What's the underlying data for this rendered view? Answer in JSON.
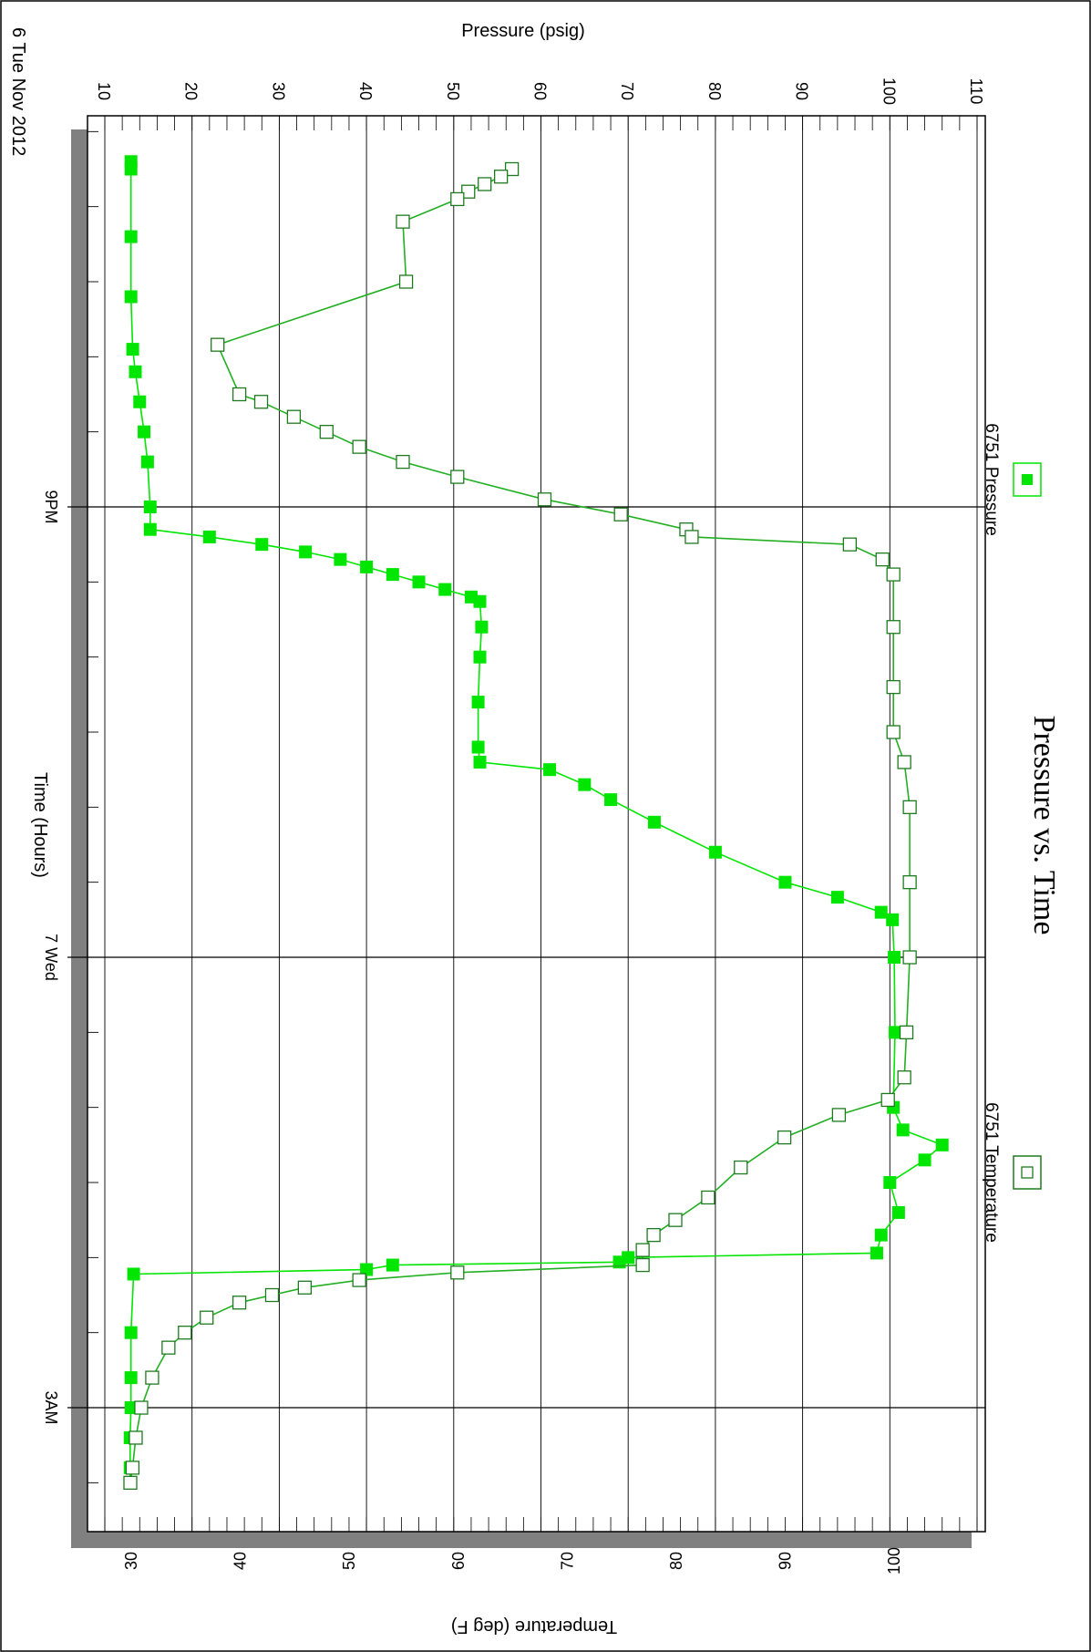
{
  "chart_data": {
    "type": "line",
    "title": "Pressure vs. Time",
    "date_label": "6 Tue Nov 2012",
    "x_axis": {
      "label": "Time (Hours)",
      "major_ticks": [
        {
          "hour": 21,
          "label": "9PM"
        },
        {
          "hour": 24,
          "label": "7 Wed"
        },
        {
          "hour": 27,
          "label": "3AM"
        }
      ],
      "range_hours": [
        18.3,
        27.75
      ]
    },
    "y_axis_pressure": {
      "label": "Pressure (psig)",
      "ticks": [
        "10",
        "20",
        "30",
        "40",
        "50",
        "60",
        "70",
        "80",
        "90",
        "100",
        "110"
      ],
      "range": [
        10,
        110
      ]
    },
    "y_axis_temperature": {
      "label": "Temperature (deg F)",
      "ticks": [
        "30",
        "40",
        "50",
        "60",
        "70",
        "80",
        "90",
        "100"
      ],
      "range": [
        30,
        100
      ]
    },
    "legend": {
      "placement": "top",
      "entries": [
        "6751 Pressure",
        "6751 Temperature"
      ]
    },
    "colors": {
      "series": "#00e600",
      "series_dark": "#1e7a1e",
      "frame_shadow": "#808080"
    },
    "series": [
      {
        "name": "6751 Pressure",
        "marker": "filled-square",
        "points": [
          [
            18.7,
            13.0
          ],
          [
            18.75,
            13.0
          ],
          [
            19.2,
            13.0
          ],
          [
            19.6,
            13.0
          ],
          [
            19.95,
            13.2
          ],
          [
            20.1,
            13.5
          ],
          [
            20.3,
            14.0
          ],
          [
            20.5,
            14.5
          ],
          [
            20.7,
            14.9
          ],
          [
            21.0,
            15.2
          ],
          [
            21.15,
            15.2
          ],
          [
            21.2,
            22.0
          ],
          [
            21.25,
            28.0
          ],
          [
            21.3,
            33.0
          ],
          [
            21.35,
            37.0
          ],
          [
            21.4,
            40.0
          ],
          [
            21.45,
            43.0
          ],
          [
            21.5,
            46.0
          ],
          [
            21.55,
            49.0
          ],
          [
            21.6,
            52.0
          ],
          [
            21.63,
            53.0
          ],
          [
            21.8,
            53.2
          ],
          [
            22.0,
            53.0
          ],
          [
            22.3,
            52.8
          ],
          [
            22.6,
            52.8
          ],
          [
            22.7,
            53.0
          ],
          [
            22.75,
            61.0
          ],
          [
            22.85,
            65.0
          ],
          [
            22.95,
            68.0
          ],
          [
            23.1,
            73.0
          ],
          [
            23.3,
            80.0
          ],
          [
            23.5,
            88.0
          ],
          [
            23.6,
            94.0
          ],
          [
            23.7,
            99.0
          ],
          [
            23.75,
            100.3
          ],
          [
            24.0,
            100.5
          ],
          [
            24.5,
            100.6
          ],
          [
            25.0,
            100.4
          ],
          [
            25.15,
            101.5
          ],
          [
            25.25,
            106.0
          ],
          [
            25.35,
            104.0
          ],
          [
            25.5,
            100.0
          ],
          [
            25.7,
            101.0
          ],
          [
            25.85,
            99.0
          ],
          [
            25.97,
            98.5
          ],
          [
            26.0,
            70.0
          ],
          [
            26.03,
            69.0
          ],
          [
            26.05,
            43.0
          ],
          [
            26.08,
            40.0
          ],
          [
            26.11,
            13.3
          ],
          [
            26.5,
            13.0
          ],
          [
            26.8,
            13.0
          ],
          [
            27.0,
            13.0
          ],
          [
            27.2,
            12.9
          ],
          [
            27.4,
            12.9
          ],
          [
            27.5,
            12.9
          ]
        ]
      },
      {
        "name": "6751 Temperature",
        "marker": "open-square",
        "points": [
          [
            18.75,
            65.0
          ],
          [
            18.8,
            64.0
          ],
          [
            18.85,
            62.5
          ],
          [
            18.9,
            61.0
          ],
          [
            18.95,
            60.0
          ],
          [
            19.1,
            55.0
          ],
          [
            19.5,
            55.3
          ],
          [
            19.92,
            38.0
          ],
          [
            20.25,
            40.0
          ],
          [
            20.3,
            42.0
          ],
          [
            20.4,
            45.0
          ],
          [
            20.5,
            48.0
          ],
          [
            20.6,
            51.0
          ],
          [
            20.7,
            55.0
          ],
          [
            20.8,
            60.0
          ],
          [
            20.95,
            68.0
          ],
          [
            21.05,
            75.0
          ],
          [
            21.15,
            81.0
          ],
          [
            21.2,
            81.5
          ],
          [
            21.25,
            96.0
          ],
          [
            21.35,
            99.0
          ],
          [
            21.45,
            100.0
          ],
          [
            21.8,
            100.0
          ],
          [
            22.2,
            100.0
          ],
          [
            22.5,
            100.0
          ],
          [
            22.7,
            101.0
          ],
          [
            23.0,
            101.5
          ],
          [
            23.5,
            101.5
          ],
          [
            24.0,
            101.5
          ],
          [
            24.5,
            101.2
          ],
          [
            24.8,
            101.0
          ],
          [
            24.95,
            99.5
          ],
          [
            25.05,
            95.0
          ],
          [
            25.2,
            90.0
          ],
          [
            25.4,
            86.0
          ],
          [
            25.6,
            83.0
          ],
          [
            25.75,
            80.0
          ],
          [
            25.85,
            78.0
          ],
          [
            25.95,
            77.0
          ],
          [
            26.05,
            77.0
          ],
          [
            26.1,
            60.0
          ],
          [
            26.15,
            51.0
          ],
          [
            26.2,
            46.0
          ],
          [
            26.25,
            43.0
          ],
          [
            26.3,
            40.0
          ],
          [
            26.4,
            37.0
          ],
          [
            26.5,
            35.0
          ],
          [
            26.6,
            33.5
          ],
          [
            26.8,
            32.0
          ],
          [
            27.0,
            31.0
          ],
          [
            27.2,
            30.5
          ],
          [
            27.4,
            30.2
          ],
          [
            27.5,
            30.0
          ]
        ]
      }
    ]
  }
}
